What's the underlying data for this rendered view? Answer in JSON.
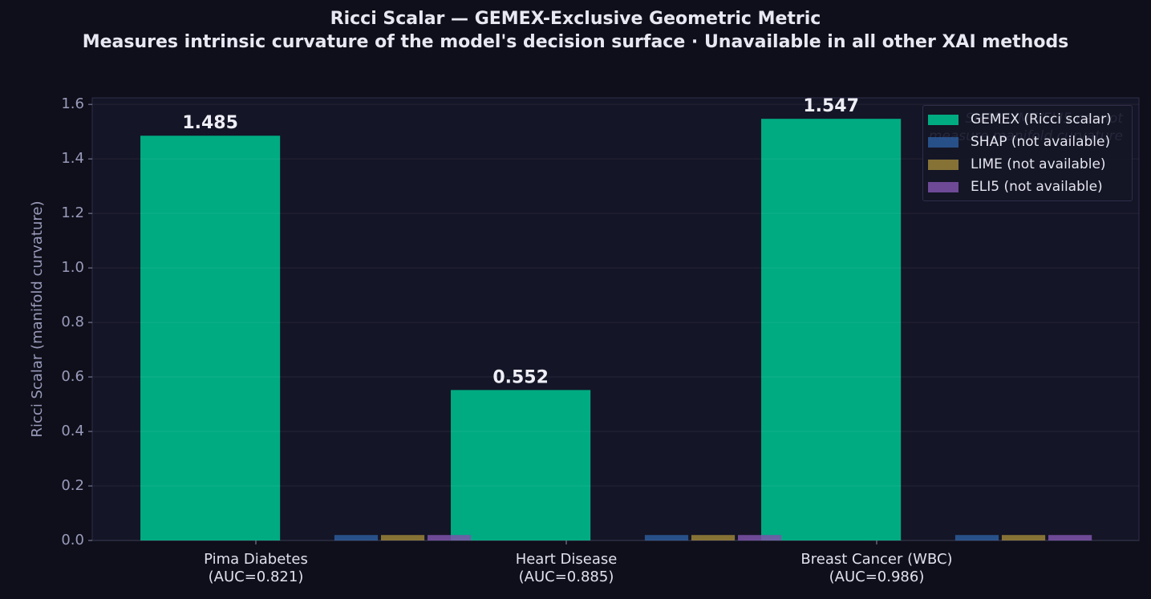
{
  "chart_data": {
    "type": "bar",
    "title": "Ricci Scalar — GEMEX-Exclusive Geometric Metric",
    "subtitle": "Measures intrinsic curvature of the model's decision surface · Unavailable in all other XAI methods",
    "y_label": "Ricci Scalar (manifold curvature)",
    "annotation": "SHAP/LIME/ELI5 cannot\nmeasure manifold curvature",
    "categories": [
      "Pima Diabetes\n(AUC=0.821)",
      "Heart Disease\n(AUC=0.885)",
      "Breast Cancer (WBC)\n(AUC=0.986)"
    ],
    "series": [
      {
        "name": "GEMEX (Ricci scalar)",
        "color": "#00ab82",
        "values": [
          1.485,
          0.552,
          1.547
        ]
      },
      {
        "name": "SHAP (not available)",
        "color": "#2c5a9a",
        "values": [
          0.02,
          0.02,
          0.02
        ]
      },
      {
        "name": "LIME (not available)",
        "color": "#9a8238",
        "values": [
          0.02,
          0.02,
          0.02
        ]
      },
      {
        "name": "ELI5 (not available)",
        "color": "#7c52aa",
        "values": [
          0.02,
          0.02,
          0.02
        ]
      }
    ],
    "ylim": [
      0,
      1.624
    ],
    "yticks": [
      {
        "value": 0,
        "label": "0.0"
      },
      {
        "value": 0.2,
        "label": "0.2"
      },
      {
        "value": 0.4,
        "label": "0.4"
      },
      {
        "value": 0.6,
        "label": "0.6"
      },
      {
        "value": 0.8,
        "label": "0.8"
      },
      {
        "value": 1.0,
        "label": "1.0"
      },
      {
        "value": 1.2,
        "label": "1.2"
      },
      {
        "value": 1.4,
        "label": "1.4"
      },
      {
        "value": 1.6,
        "label": "1.6"
      }
    ],
    "grid": true,
    "legend": "upper right"
  }
}
